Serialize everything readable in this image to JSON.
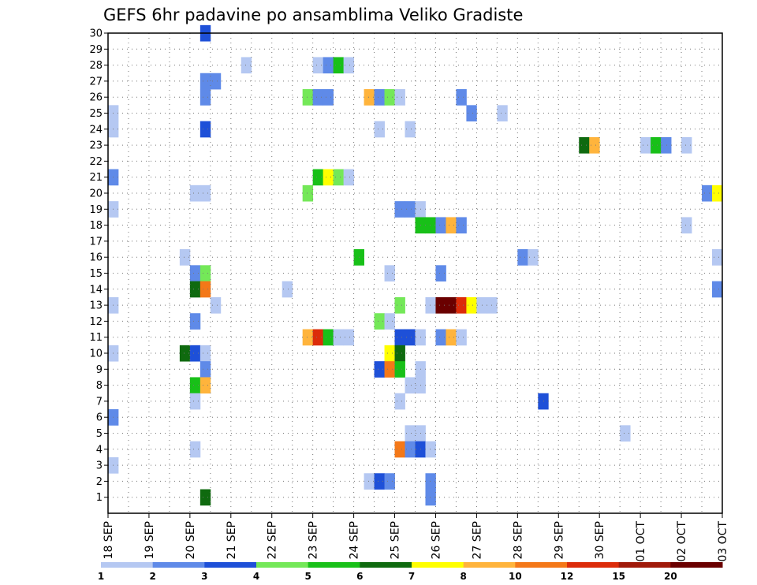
{
  "chart_data": {
    "type": "heatmap",
    "title": "GEFS 6hr padavine po ansamblima Veliko Gradiste",
    "x_axis": {
      "unit": "6-hour step (0 = 18 SEP 00Z)",
      "range": [
        0,
        60
      ],
      "tick_labels": [
        "18 SEP",
        "19 SEP",
        "20 SEP",
        "21 SEP",
        "22 SEP",
        "23 SEP",
        "24 SEP",
        "25 SEP",
        "26 SEP",
        "27 SEP",
        "28 SEP",
        "29 SEP",
        "30 SEP",
        "01 OCT",
        "02 OCT",
        "03 OCT"
      ]
    },
    "y_axis": {
      "unit": "ensemble member",
      "range": [
        0,
        30
      ],
      "ticks": [
        1,
        2,
        3,
        4,
        5,
        6,
        7,
        8,
        9,
        10,
        11,
        12,
        13,
        14,
        15,
        16,
        17,
        18,
        19,
        20,
        21,
        22,
        23,
        24,
        25,
        26,
        27,
        28,
        29,
        30
      ]
    },
    "grid": true,
    "legend": {
      "placement": "bottom",
      "labels": [
        "1",
        "2",
        "3",
        "4",
        "5",
        "6",
        "7",
        "8",
        "10",
        "12",
        "15",
        "20"
      ],
      "colors": [
        "#b5c8f2",
        "#5f8ae8",
        "#1e50d8",
        "#74e858",
        "#18c018",
        "#0f6a0f",
        "#ffff00",
        "#ffb43c",
        "#f47818",
        "#dc2c0a",
        "#a01a0a",
        "#6a0000"
      ]
    },
    "cells": [
      {
        "x": 9.5,
        "m": 30,
        "c": 3
      },
      {
        "x": 13.5,
        "m": 28,
        "c": 1
      },
      {
        "x": 20.5,
        "m": 28,
        "c": 1
      },
      {
        "x": 21.5,
        "m": 28,
        "c": 2
      },
      {
        "x": 22.5,
        "m": 28,
        "c": 5
      },
      {
        "x": 23.5,
        "m": 28,
        "c": 1
      },
      {
        "x": 9.5,
        "m": 27,
        "c": 2
      },
      {
        "x": 10.5,
        "m": 27,
        "c": 2
      },
      {
        "x": 9.5,
        "m": 26,
        "c": 2
      },
      {
        "x": 19.5,
        "m": 26,
        "c": 4
      },
      {
        "x": 20.5,
        "m": 26,
        "c": 2
      },
      {
        "x": 21.5,
        "m": 26,
        "c": 2
      },
      {
        "x": 25.5,
        "m": 26,
        "c": 8
      },
      {
        "x": 26.5,
        "m": 26,
        "c": 2
      },
      {
        "x": 27.5,
        "m": 26,
        "c": 4
      },
      {
        "x": 28.5,
        "m": 26,
        "c": 1
      },
      {
        "x": 34.5,
        "m": 26,
        "c": 2
      },
      {
        "x": 0.5,
        "m": 25,
        "c": 1
      },
      {
        "x": 35.5,
        "m": 25,
        "c": 2
      },
      {
        "x": 38.5,
        "m": 25,
        "c": 1
      },
      {
        "x": 0.5,
        "m": 24,
        "c": 1
      },
      {
        "x": 9.5,
        "m": 24,
        "c": 3
      },
      {
        "x": 26.5,
        "m": 24,
        "c": 1
      },
      {
        "x": 29.5,
        "m": 24,
        "c": 1
      },
      {
        "x": 46.5,
        "m": 23,
        "c": 6
      },
      {
        "x": 47.5,
        "m": 23,
        "c": 8
      },
      {
        "x": 52.5,
        "m": 23,
        "c": 1
      },
      {
        "x": 53.5,
        "m": 23,
        "c": 5
      },
      {
        "x": 54.5,
        "m": 23,
        "c": 2
      },
      {
        "x": 56.5,
        "m": 23,
        "c": 1
      },
      {
        "x": 0.5,
        "m": 21,
        "c": 2
      },
      {
        "x": 20.5,
        "m": 21,
        "c": 5
      },
      {
        "x": 21.5,
        "m": 21,
        "c": 7
      },
      {
        "x": 22.5,
        "m": 21,
        "c": 4
      },
      {
        "x": 23.5,
        "m": 21,
        "c": 1
      },
      {
        "x": 8.5,
        "m": 20,
        "c": 1
      },
      {
        "x": 9.5,
        "m": 20,
        "c": 1
      },
      {
        "x": 19.5,
        "m": 20,
        "c": 4
      },
      {
        "x": 58.5,
        "m": 20,
        "c": 2
      },
      {
        "x": 59.5,
        "m": 20,
        "c": 7
      },
      {
        "x": 0.5,
        "m": 19,
        "c": 1
      },
      {
        "x": 28.5,
        "m": 19,
        "c": 2
      },
      {
        "x": 29.5,
        "m": 19,
        "c": 2
      },
      {
        "x": 30.5,
        "m": 19,
        "c": 1
      },
      {
        "x": 30.5,
        "m": 18,
        "c": 5
      },
      {
        "x": 31.5,
        "m": 18,
        "c": 5
      },
      {
        "x": 32.5,
        "m": 18,
        "c": 2
      },
      {
        "x": 33.5,
        "m": 18,
        "c": 8
      },
      {
        "x": 34.5,
        "m": 18,
        "c": 2
      },
      {
        "x": 56.5,
        "m": 18,
        "c": 1
      },
      {
        "x": 7.5,
        "m": 16,
        "c": 1
      },
      {
        "x": 24.5,
        "m": 16,
        "c": 5
      },
      {
        "x": 40.5,
        "m": 16,
        "c": 2
      },
      {
        "x": 41.5,
        "m": 16,
        "c": 1
      },
      {
        "x": 59.5,
        "m": 16,
        "c": 1
      },
      {
        "x": 8.5,
        "m": 15,
        "c": 2
      },
      {
        "x": 9.5,
        "m": 15,
        "c": 4
      },
      {
        "x": 27.5,
        "m": 15,
        "c": 1
      },
      {
        "x": 32.5,
        "m": 15,
        "c": 2
      },
      {
        "x": 8.5,
        "m": 14,
        "c": 6
      },
      {
        "x": 9.5,
        "m": 14,
        "c": 9
      },
      {
        "x": 17.5,
        "m": 14,
        "c": 1
      },
      {
        "x": 59.5,
        "m": 14,
        "c": 2
      },
      {
        "x": 0.5,
        "m": 13,
        "c": 1
      },
      {
        "x": 10.5,
        "m": 13,
        "c": 1
      },
      {
        "x": 28.5,
        "m": 13,
        "c": 4
      },
      {
        "x": 31.5,
        "m": 13,
        "c": 1
      },
      {
        "x": 32.5,
        "m": 13,
        "c": 12
      },
      {
        "x": 33.5,
        "m": 13,
        "c": 12
      },
      {
        "x": 34.5,
        "m": 13,
        "c": 10
      },
      {
        "x": 35.5,
        "m": 13,
        "c": 7
      },
      {
        "x": 36.5,
        "m": 13,
        "c": 1
      },
      {
        "x": 37.5,
        "m": 13,
        "c": 1
      },
      {
        "x": 8.5,
        "m": 12,
        "c": 2
      },
      {
        "x": 26.5,
        "m": 12,
        "c": 4
      },
      {
        "x": 27.5,
        "m": 12,
        "c": 1
      },
      {
        "x": 19.5,
        "m": 11,
        "c": 8
      },
      {
        "x": 20.5,
        "m": 11,
        "c": 10
      },
      {
        "x": 21.5,
        "m": 11,
        "c": 5
      },
      {
        "x": 22.5,
        "m": 11,
        "c": 1
      },
      {
        "x": 23.5,
        "m": 11,
        "c": 1
      },
      {
        "x": 28.5,
        "m": 11,
        "c": 3
      },
      {
        "x": 29.5,
        "m": 11,
        "c": 3
      },
      {
        "x": 30.5,
        "m": 11,
        "c": 1
      },
      {
        "x": 32.5,
        "m": 11,
        "c": 2
      },
      {
        "x": 33.5,
        "m": 11,
        "c": 8
      },
      {
        "x": 34.5,
        "m": 11,
        "c": 1
      },
      {
        "x": 0.5,
        "m": 10,
        "c": 1
      },
      {
        "x": 7.5,
        "m": 10,
        "c": 6
      },
      {
        "x": 8.5,
        "m": 10,
        "c": 3
      },
      {
        "x": 9.5,
        "m": 10,
        "c": 1
      },
      {
        "x": 27.5,
        "m": 10,
        "c": 7
      },
      {
        "x": 28.5,
        "m": 10,
        "c": 6
      },
      {
        "x": 9.5,
        "m": 9,
        "c": 2
      },
      {
        "x": 26.5,
        "m": 9,
        "c": 3
      },
      {
        "x": 27.5,
        "m": 9,
        "c": 9
      },
      {
        "x": 28.5,
        "m": 9,
        "c": 5
      },
      {
        "x": 30.5,
        "m": 9,
        "c": 1
      },
      {
        "x": 8.5,
        "m": 8,
        "c": 5
      },
      {
        "x": 9.5,
        "m": 8,
        "c": 8
      },
      {
        "x": 29.5,
        "m": 8,
        "c": 1
      },
      {
        "x": 30.5,
        "m": 8,
        "c": 1
      },
      {
        "x": 8.5,
        "m": 7,
        "c": 1
      },
      {
        "x": 28.5,
        "m": 7,
        "c": 1
      },
      {
        "x": 42.5,
        "m": 7,
        "c": 3
      },
      {
        "x": 0.5,
        "m": 6,
        "c": 2
      },
      {
        "x": 29.5,
        "m": 5,
        "c": 1
      },
      {
        "x": 30.5,
        "m": 5,
        "c": 1
      },
      {
        "x": 50.5,
        "m": 5,
        "c": 1
      },
      {
        "x": 8.5,
        "m": 4,
        "c": 1
      },
      {
        "x": 28.5,
        "m": 4,
        "c": 9
      },
      {
        "x": 29.5,
        "m": 4,
        "c": 2
      },
      {
        "x": 30.5,
        "m": 4,
        "c": 3
      },
      {
        "x": 31.5,
        "m": 4,
        "c": 1
      },
      {
        "x": 0.5,
        "m": 3,
        "c": 1
      },
      {
        "x": 25.5,
        "m": 2,
        "c": 1
      },
      {
        "x": 26.5,
        "m": 2,
        "c": 3
      },
      {
        "x": 27.5,
        "m": 2,
        "c": 2
      },
      {
        "x": 31.5,
        "m": 2,
        "c": 2
      },
      {
        "x": 31.5,
        "m": 1,
        "c": 2
      },
      {
        "x": 9.5,
        "m": 1,
        "c": 6
      }
    ]
  }
}
